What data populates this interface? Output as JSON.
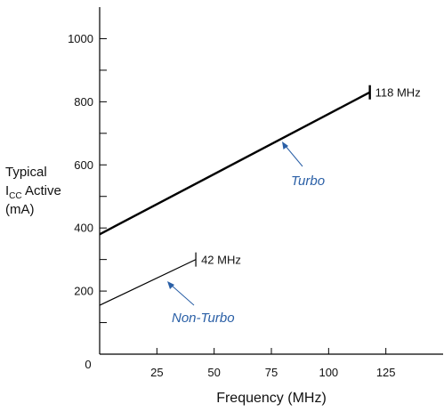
{
  "chart_data": {
    "type": "line",
    "xlabel": "Frequency (MHz)",
    "ylabel_lines": [
      "Typical",
      "I",
      "CC",
      " Active",
      "(mA)"
    ],
    "xlim": [
      0,
      150
    ],
    "ylim": [
      0,
      1100
    ],
    "x_ticks": [
      0,
      25,
      50,
      75,
      100,
      125
    ],
    "x_tick_labels": [
      "0",
      "25",
      "50",
      "75",
      "100",
      "125"
    ],
    "y_major_ticks": [
      200,
      400,
      600,
      800,
      1000
    ],
    "y_tick_labels": [
      "200",
      "400",
      "600",
      "800",
      "1000"
    ],
    "y_minor_ticks": [
      100,
      300,
      500,
      700,
      900
    ],
    "series": [
      {
        "name": "Turbo",
        "x": [
          0,
          118
        ],
        "y": [
          380,
          830
        ],
        "end_label": "118 MHz",
        "color": "#000000",
        "label_color": "#2a5fa6"
      },
      {
        "name": "Non-Turbo",
        "x": [
          0,
          42
        ],
        "y": [
          155,
          300
        ],
        "end_label": "42 MHz",
        "color": "#000000",
        "label_color": "#2a5fa6"
      }
    ]
  }
}
